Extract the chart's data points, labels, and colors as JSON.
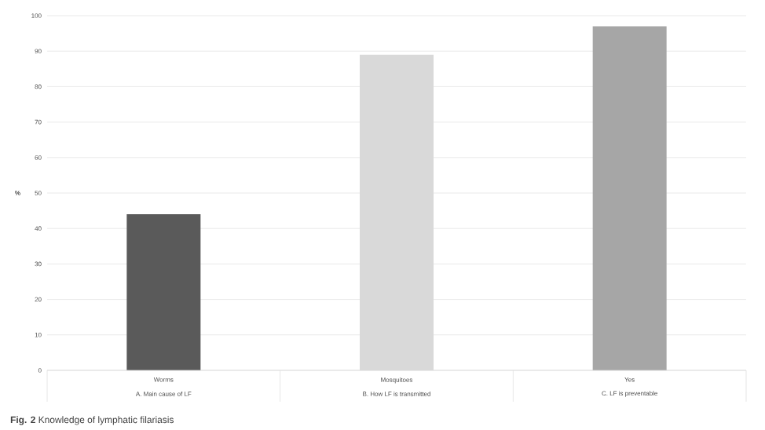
{
  "chart_data": {
    "type": "bar",
    "title": "**Fig. 2** Knowledge of lymphatic filariasis",
    "ylabel": "%",
    "categories": [
      "Worms",
      "Mosquitoes",
      "Yes"
    ],
    "values": [
      44,
      89,
      97
    ],
    "colors": [
      "#5a5a5a",
      "#d9d9d9",
      "#a6a6a6"
    ],
    "ylim": [
      0,
      100
    ],
    "yticks": [
      0,
      10,
      20,
      30,
      40,
      50,
      60,
      70,
      80,
      90,
      100
    ],
    "grid": "y",
    "annotations": [
      "A. Main cause of LF",
      "B. How LF is transmitted",
      "C. LF is preventable"
    ]
  }
}
